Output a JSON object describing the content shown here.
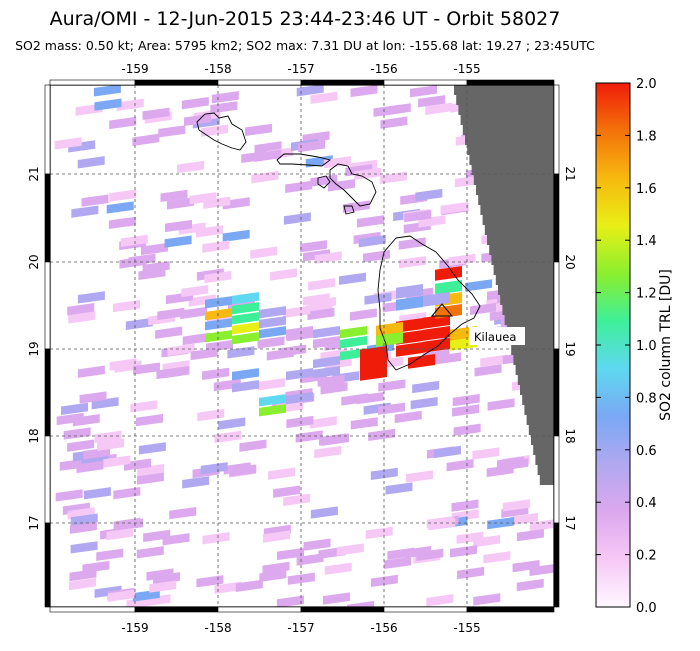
{
  "header": {
    "title": "Aura/OMI - 12-Jun-2015 23:44-23:46 UT - Orbit 58027",
    "subtitle": "SO2 mass: 0.50 kt; Area: 5795 km2; SO2 max: 7.31 DU at lon: -155.68 lat: 19.27 ; 23:45UTC"
  },
  "map": {
    "lon_range": [
      -160,
      -154
    ],
    "lat_range": [
      16,
      22
    ],
    "lon_ticks": [
      "-159",
      "-158",
      "-157",
      "-156",
      "-155"
    ],
    "lat_ticks": [
      "21",
      "20",
      "19",
      "18",
      "17"
    ],
    "annotation": "Kilauea",
    "no_data_color": "#666666"
  },
  "colorbar": {
    "label": "SO2 column TRL [DU]",
    "min": 0.0,
    "max": 2.0,
    "ticks": [
      "2.0",
      "1.8",
      "1.6",
      "1.4",
      "1.2",
      "1.0",
      "0.8",
      "0.6",
      "0.4",
      "0.2",
      "0.0"
    ],
    "colors": [
      "#fff8ff",
      "#f6c8f6",
      "#dca8ee",
      "#b0a8f0",
      "#7aa8f4",
      "#5fd8f0",
      "#3eef9a",
      "#8aef2e",
      "#e8ef16",
      "#f7b90f",
      "#f4720a",
      "#f01c0a"
    ]
  }
}
